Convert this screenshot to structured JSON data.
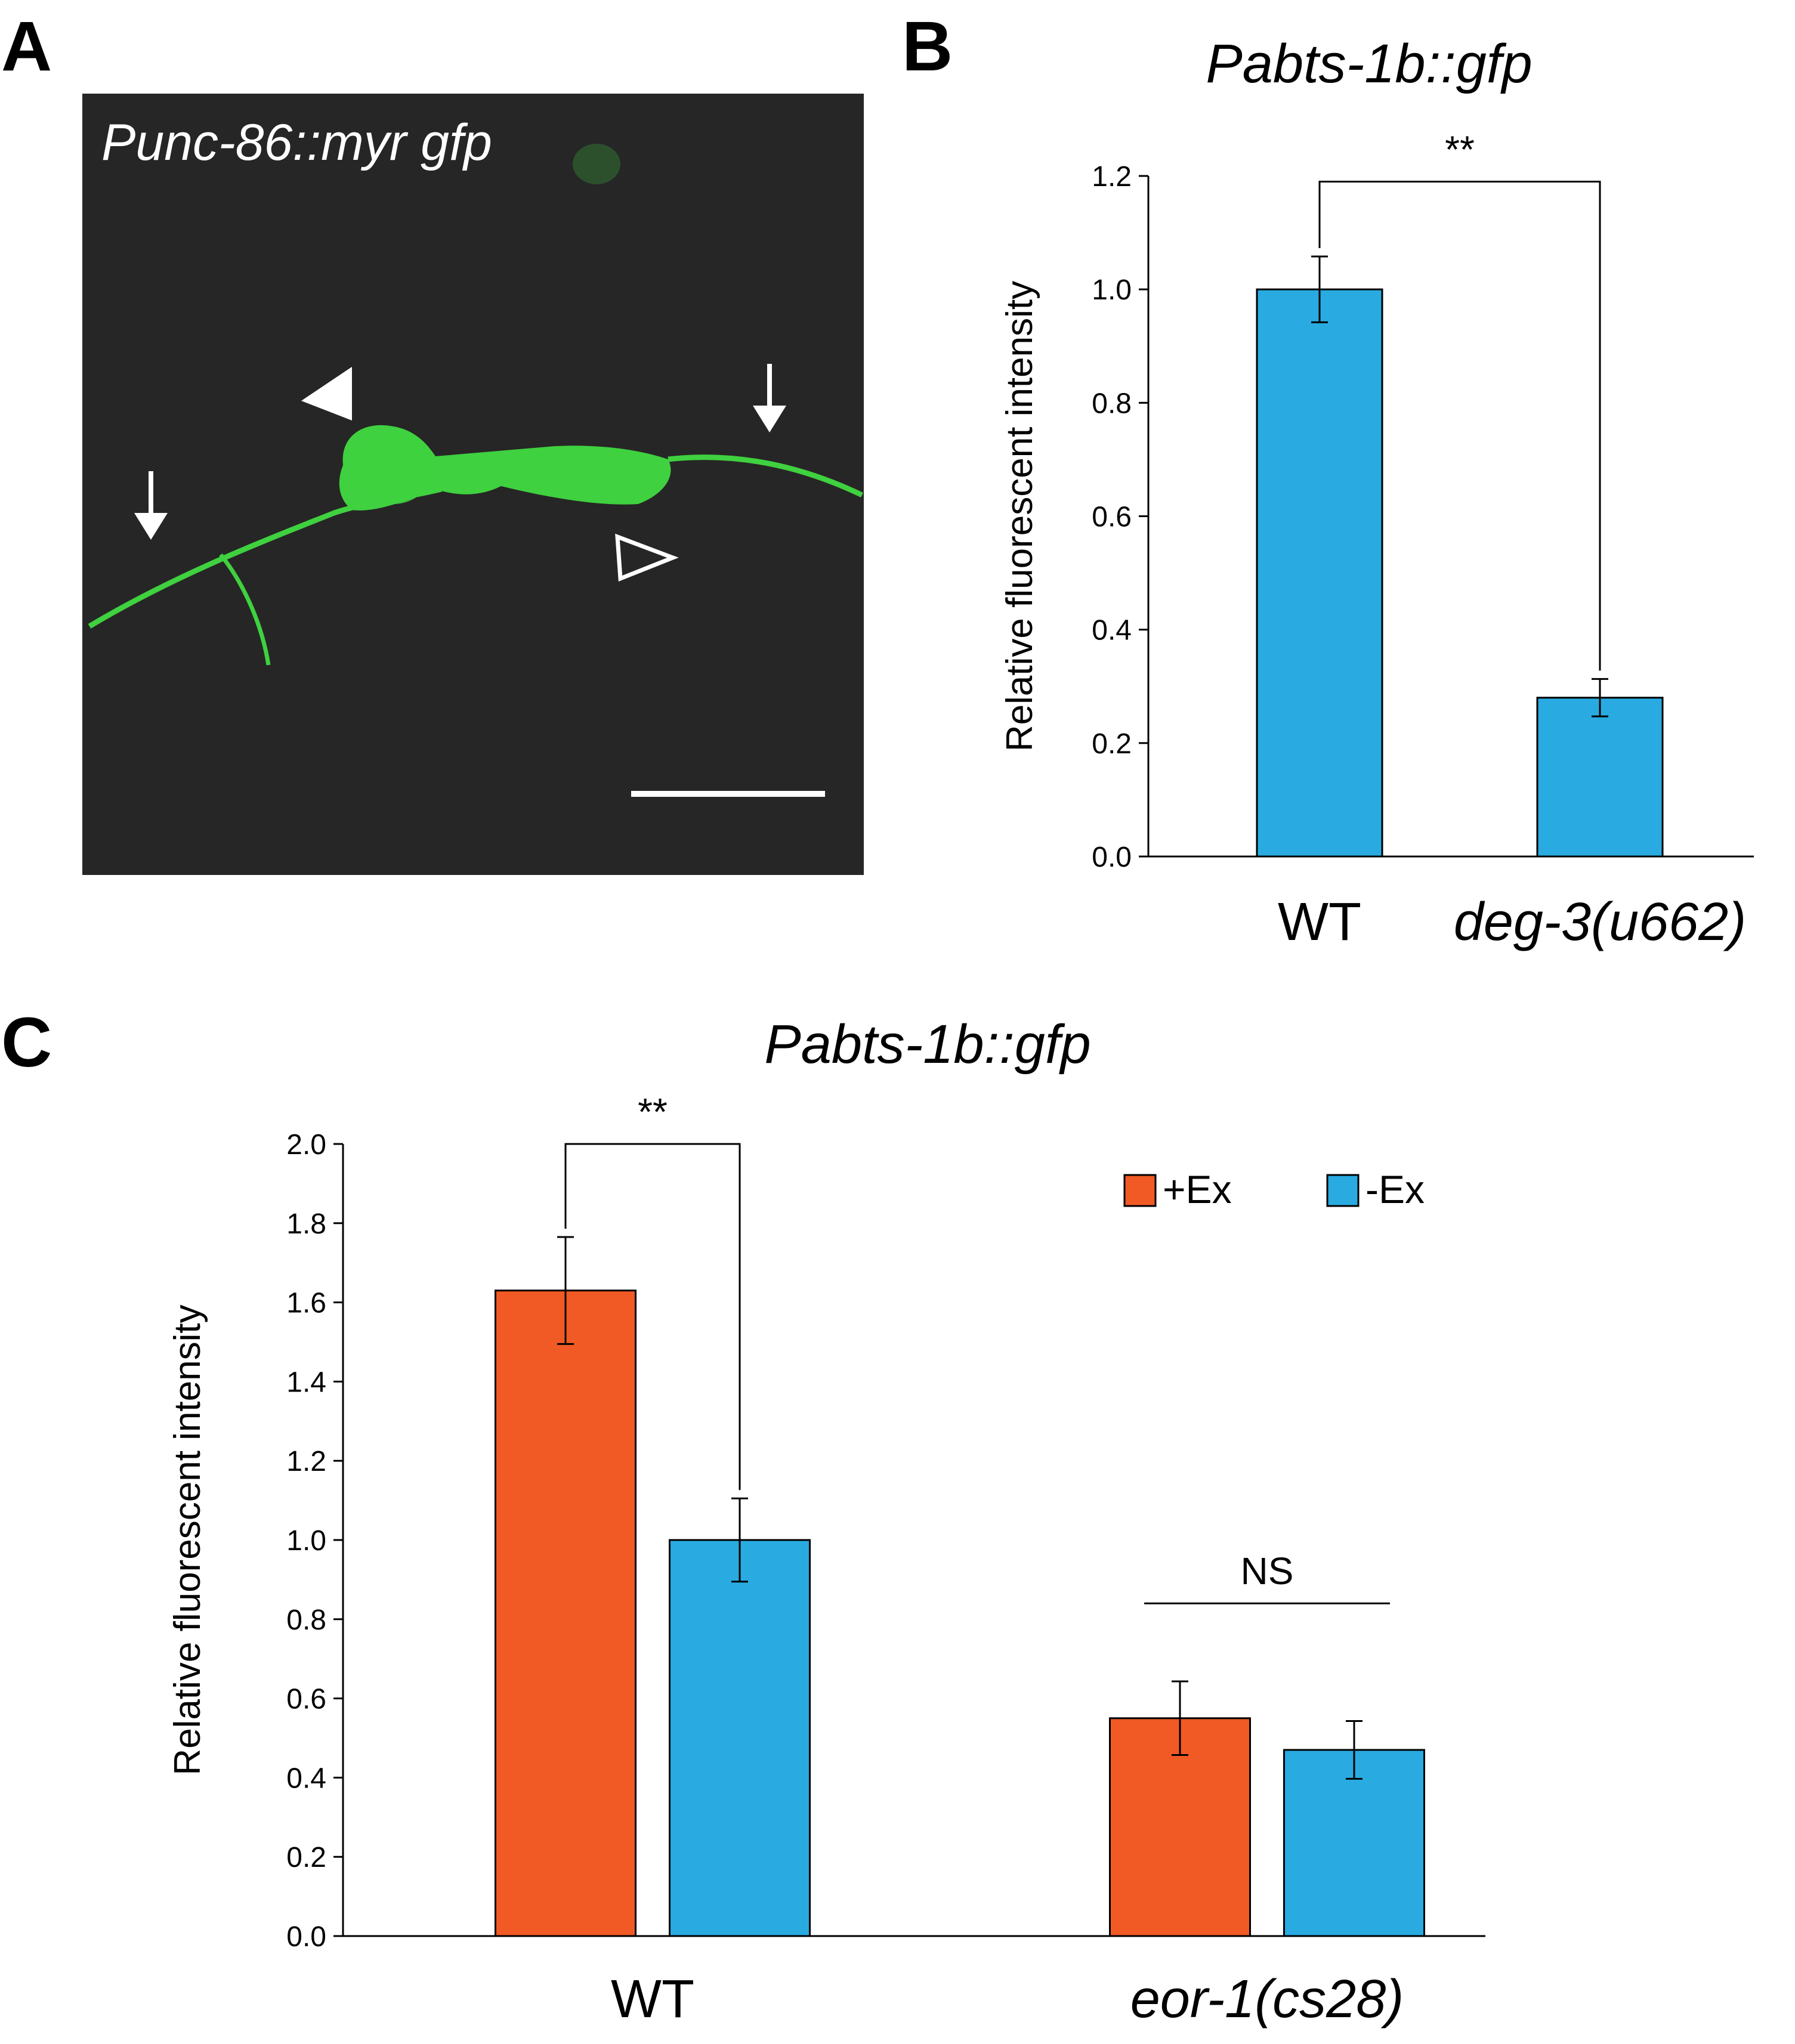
{
  "panels": {
    "a": {
      "letter": "A",
      "label": "Punc-86::myr gfp",
      "colors": {
        "background": "#262626",
        "gfp": "#3fd13f",
        "annotation": "#ffffff"
      },
      "annotations": [
        "filled-arrowhead-icon",
        "open-arrowhead-icon",
        "down-arrow-icon",
        "down-arrow-icon",
        "scale-bar"
      ]
    },
    "b": {
      "letter": "B"
    },
    "c": {
      "letter": "C"
    }
  },
  "chart_data": [
    {
      "id": "B",
      "type": "bar",
      "title": "Pabts-1b::gfp",
      "xlabel": "",
      "ylabel": "Relative fluorescent intensity",
      "categories": [
        "WT",
        "deg-3(u662)"
      ],
      "category_italic": [
        false,
        true
      ],
      "series": [
        {
          "values": [
            1.0,
            0.28
          ],
          "errors": [
            0.058,
            0.033
          ],
          "color": "#29abe2"
        }
      ],
      "ylim": [
        0,
        1.2
      ],
      "yticks": [
        "0.0",
        "0.2",
        "0.4",
        "0.6",
        "0.8",
        "1.0",
        "1.2"
      ],
      "grid": false,
      "significance": [
        {
          "label": "**",
          "from": 0,
          "to": 1,
          "y": 1.19
        }
      ]
    },
    {
      "id": "C",
      "type": "bar",
      "title": "Pabts-1b::gfp",
      "xlabel": "",
      "ylabel": "Relative fluorescent intensity",
      "categories": [
        "WT",
        "eor-1(cs28)"
      ],
      "category_italic": [
        false,
        true
      ],
      "series": [
        {
          "name": "+Ex",
          "values": [
            1.63,
            0.55
          ],
          "errors": [
            0.135,
            0.093
          ],
          "color": "#f15a24"
        },
        {
          "name": "-Ex",
          "values": [
            1.0,
            0.47
          ],
          "errors": [
            0.105,
            0.073
          ],
          "color": "#29abe2"
        }
      ],
      "ylim": [
        0,
        2.0
      ],
      "yticks": [
        "0.0",
        "0.2",
        "0.4",
        "0.6",
        "0.8",
        "1.0",
        "1.2",
        "1.4",
        "1.6",
        "1.8",
        "2.0"
      ],
      "grid": false,
      "legend": "top-right",
      "significance": [
        {
          "label": "**",
          "category": 0,
          "y": 2.0,
          "bracket": true
        },
        {
          "label": "NS",
          "category": 1,
          "y": 0.84,
          "bracket": false
        }
      ]
    }
  ]
}
